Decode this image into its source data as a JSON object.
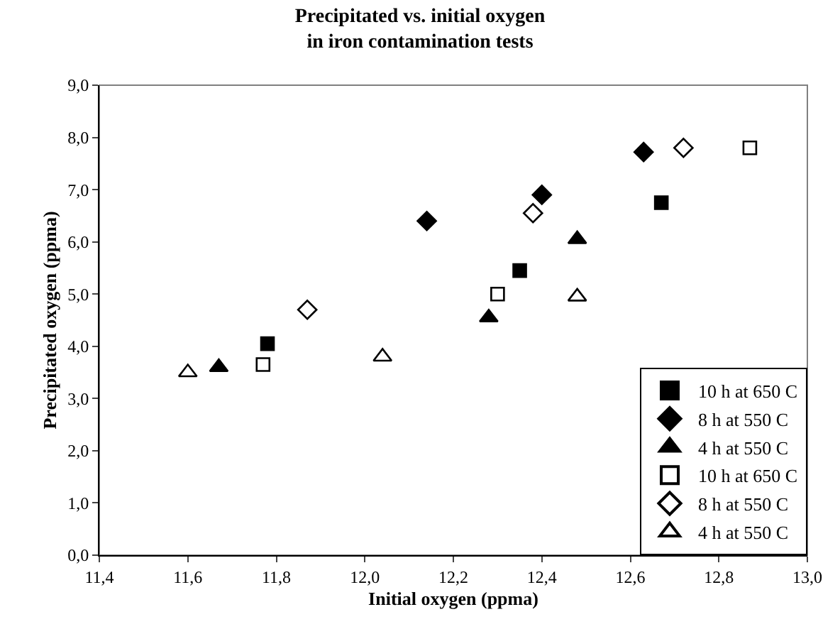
{
  "chart_data": {
    "type": "scatter",
    "title": "Precipitated vs. initial oxygen\nin iron contamination tests",
    "xlabel": "Initial oxygen (ppma)",
    "ylabel": "Precipitated oxygen (ppma)",
    "xlim": [
      11.4,
      13.0
    ],
    "xticks": [
      {
        "value": 11.4,
        "label": "11,4"
      },
      {
        "value": 11.6,
        "label": "11,6"
      },
      {
        "value": 11.8,
        "label": "11,8"
      },
      {
        "value": 12.0,
        "label": "12,0"
      },
      {
        "value": 12.2,
        "label": "12,2"
      },
      {
        "value": 12.4,
        "label": "12,4"
      },
      {
        "value": 12.6,
        "label": "12,6"
      },
      {
        "value": 12.8,
        "label": "12,8"
      },
      {
        "value": 13.0,
        "label": "13,0"
      }
    ],
    "ylim": [
      0,
      9
    ],
    "yticks": [
      {
        "value": 0,
        "label": "0,0"
      },
      {
        "value": 1,
        "label": "1,0"
      },
      {
        "value": 2,
        "label": "2,0"
      },
      {
        "value": 3,
        "label": "3,0"
      },
      {
        "value": 4,
        "label": "4,0"
      },
      {
        "value": 5,
        "label": "5,0"
      },
      {
        "value": 6,
        "label": "6,0"
      },
      {
        "value": 7,
        "label": "7,0"
      },
      {
        "value": 8,
        "label": "8,0"
      },
      {
        "value": 9,
        "label": "9,0"
      }
    ],
    "grid": false,
    "legend": "bottom right",
    "series": [
      {
        "name": "10 h at 650 C",
        "color": "#000000",
        "marker": "square",
        "x": [
          11.78,
          12.35,
          12.67
        ],
        "values": [
          4.05,
          5.45,
          6.75
        ]
      },
      {
        "name": "8 h at 550 C",
        "color": "#000000",
        "marker": "diamond",
        "x": [
          12.14,
          12.4,
          12.63
        ],
        "values": [
          6.4,
          6.9,
          7.72
        ]
      },
      {
        "name": "4 h at 550 C",
        "color": "#000000",
        "marker": "triangle",
        "x": [
          11.67,
          12.28,
          12.48
        ],
        "values": [
          3.6,
          4.55,
          6.05
        ]
      },
      {
        "name": "10 h at 650 C",
        "color": "#ffffff",
        "marker": "square",
        "x": [
          11.77,
          12.3,
          12.87
        ],
        "values": [
          3.65,
          5.0,
          7.8
        ]
      },
      {
        "name": "8 h at 550 C",
        "color": "#ffffff",
        "marker": "diamond",
        "x": [
          11.87,
          12.38,
          12.72
        ],
        "values": [
          4.7,
          6.55,
          7.8
        ]
      },
      {
        "name": "4 h at 550 C",
        "color": "#ffffff",
        "marker": "triangle",
        "x": [
          11.6,
          12.04,
          12.48
        ],
        "values": [
          3.5,
          3.8,
          4.95
        ]
      }
    ]
  }
}
